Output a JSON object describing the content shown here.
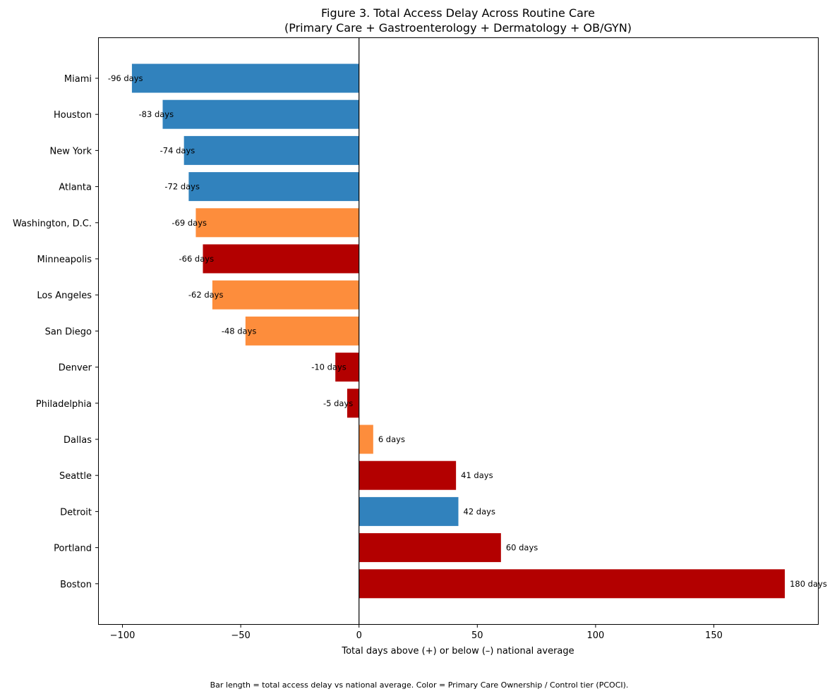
{
  "chart_data": {
    "type": "bar",
    "orientation": "horizontal",
    "title_line1": "Figure 3. Total Access Delay Across Routine Care",
    "title_line2": "(Primary Care + Gastroenterology + Dermatology + OB/GYN)",
    "xlabel": "Total days above (+) or below (–) national average",
    "ylabel": "",
    "xlim": [
      -110,
      194
    ],
    "xticks": [
      -100,
      -50,
      0,
      50,
      100,
      150
    ],
    "xtick_labels": [
      "−100",
      "−50",
      "0",
      "50",
      "100",
      "150"
    ],
    "value_suffix": " days",
    "categories": [
      "Miami",
      "Houston",
      "New York",
      "Atlanta",
      "Washington, D.C.",
      "Minneapolis",
      "Los Angeles",
      "San Diego",
      "Denver",
      "Philadelphia",
      "Dallas",
      "Seattle",
      "Detroit",
      "Portland",
      "Boston"
    ],
    "values": [
      -96,
      -83,
      -74,
      -72,
      -69,
      -66,
      -62,
      -48,
      -10,
      -5,
      6,
      41,
      42,
      60,
      180
    ],
    "tiers": [
      "blue",
      "blue",
      "blue",
      "blue",
      "orange",
      "red",
      "orange",
      "orange",
      "red",
      "red",
      "orange",
      "red",
      "blue",
      "red",
      "red"
    ],
    "colors": {
      "blue": "#3182bd",
      "orange": "#fd8d3c",
      "red": "#b30000"
    },
    "footnote": "Bar length = total access delay vs national average. Color = Primary Care Ownership / Control tier (PCOCI)."
  }
}
